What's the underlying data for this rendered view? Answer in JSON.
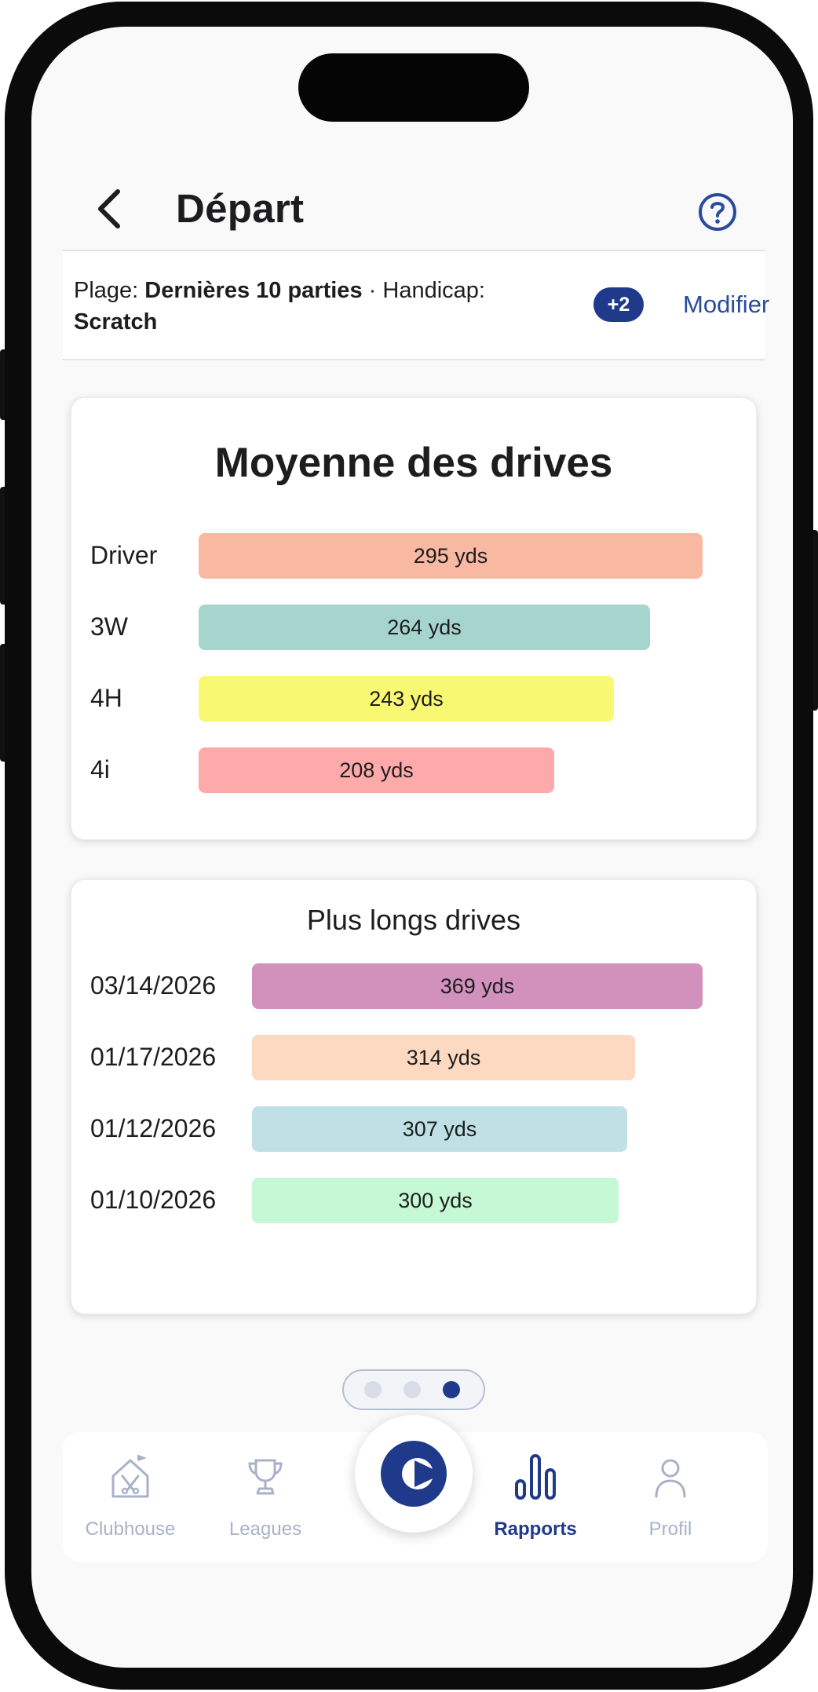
{
  "header": {
    "title": "Départ"
  },
  "filter": {
    "range_label": "Plage:",
    "range_value": "Dernières 10 parties",
    "separator": "·",
    "handicap_label": "Handicap:",
    "handicap_value": "Scratch",
    "badge": "+2",
    "modify_label": "Modifier"
  },
  "average_drives": {
    "title": "Moyenne des drives",
    "max": 295,
    "rows": [
      {
        "label": "Driver",
        "value": 295,
        "text": "295 yds",
        "color": "#f8b8a2"
      },
      {
        "label": "3W",
        "value": 264,
        "text": "264 yds",
        "color": "#a5d5cd"
      },
      {
        "label": "4H",
        "value": 243,
        "text": "243 yds",
        "color": "#f8f872"
      },
      {
        "label": "4i",
        "value": 208,
        "text": "208 yds",
        "color": "#ffaaaa"
      }
    ]
  },
  "longest_drives": {
    "title": "Plus longs drives",
    "max": 369,
    "rows": [
      {
        "label": "03/14/2026",
        "value": 369,
        "text": "369 yds",
        "color": "#d291bd"
      },
      {
        "label": "01/17/2026",
        "value": 314,
        "text": "314 yds",
        "color": "#fed9c1"
      },
      {
        "label": "01/12/2026",
        "value": 307,
        "text": "307 yds",
        "color": "#bfe1e5"
      },
      {
        "label": "01/10/2026",
        "value": 300,
        "text": "300 yds",
        "color": "#c5f8d4"
      }
    ]
  },
  "pager": {
    "count": 3,
    "active": 2,
    "active_color": "#1f3a8a",
    "inactive_color": "#d8dde8"
  },
  "tabs": [
    {
      "label": "Clubhouse",
      "icon": "clubhouse-icon"
    },
    {
      "label": "Leagues",
      "icon": "trophy-icon"
    },
    {
      "label": "Rapports",
      "icon": "reports-icon",
      "active": true
    },
    {
      "label": "Profil",
      "icon": "profile-icon"
    }
  ],
  "accent_color": "#1f3a8a"
}
